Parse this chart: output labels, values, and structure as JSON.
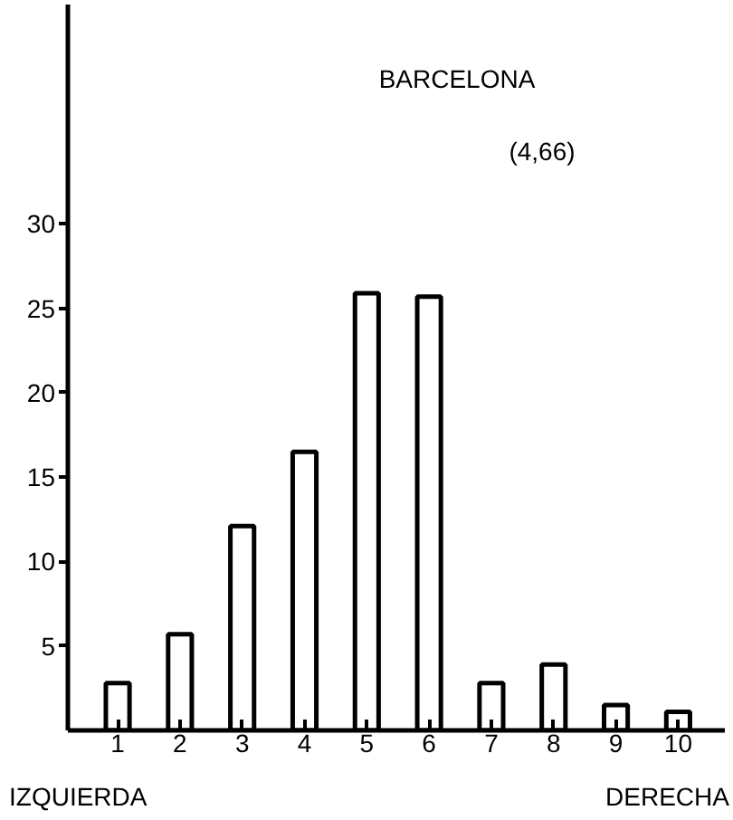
{
  "chart_data": {
    "type": "bar",
    "title": "BARCELONA",
    "categories": [
      "1",
      "2",
      "3",
      "4",
      "5",
      "6",
      "7",
      "8",
      "9",
      "10"
    ],
    "values": [
      2.8,
      5.7,
      12.1,
      16.5,
      25.9,
      25.7,
      2.8,
      3.9,
      1.5,
      1.1
    ],
    "color": "#ffffff",
    "ylim": [
      0,
      43
    ],
    "yticks": [
      5,
      10,
      15,
      20,
      25,
      30
    ],
    "grid": false,
    "annotations": [
      "(4,66)",
      "IZQUIERDA",
      "DERECHA"
    ]
  }
}
